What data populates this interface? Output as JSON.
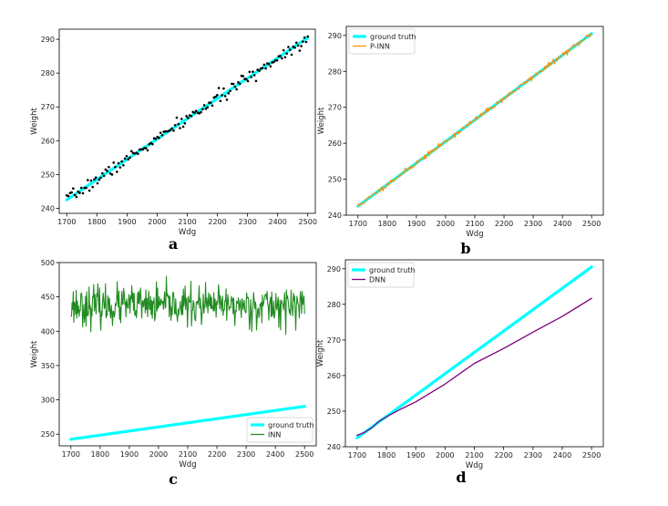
{
  "chart_data": [
    {
      "panel": "a",
      "type": "scatter",
      "xlabel": "Wdg",
      "ylabel": "Weight",
      "xlim": [
        1675,
        2525
      ],
      "ylim": [
        238.5,
        293
      ],
      "xticks": [
        1700,
        1800,
        1900,
        2000,
        2100,
        2200,
        2300,
        2400,
        2500
      ],
      "yticks": [
        240,
        250,
        260,
        270,
        280,
        290
      ],
      "grid": false,
      "legend": null,
      "series": [
        {
          "kind": "line",
          "color": "#00ffff",
          "x": [
            1700,
            2500
          ],
          "y": [
            242.5,
            290.5
          ]
        },
        {
          "kind": "scatter",
          "color": "#000000",
          "x_start": 1700,
          "x_end": 2500,
          "y_at": {
            "1700": 242.5,
            "2500": 290.5
          },
          "noise_sd": 0.9,
          "count": 150,
          "seed": 7
        }
      ]
    },
    {
      "panel": "b",
      "type": "line",
      "xlabel": "Wdg",
      "ylabel": "Weight",
      "xlim": [
        1660,
        2540
      ],
      "ylim": [
        240,
        292.5
      ],
      "xticks": [
        1700,
        1800,
        1900,
        2000,
        2100,
        2200,
        2300,
        2400,
        2500
      ],
      "yticks": [
        240,
        250,
        260,
        270,
        280,
        290
      ],
      "grid": false,
      "legend": "top-left",
      "series": [
        {
          "name": "ground truth",
          "kind": "line",
          "color": "#00ffff",
          "x": [
            1700,
            2500
          ],
          "y": [
            242.5,
            290.5
          ]
        },
        {
          "name": "P-INN",
          "kind": "noisy-line",
          "color": "#ff8c00",
          "x_start": 1700,
          "x_end": 2500,
          "y_at": {
            "1700": 242.5,
            "2500": 290.5
          },
          "noise_sd": 0.35,
          "count": 300,
          "seed": 11
        }
      ]
    },
    {
      "panel": "c",
      "type": "line",
      "xlabel": "Wdg",
      "ylabel": "Weight",
      "xlim": [
        1660,
        2540
      ],
      "ylim": [
        233,
        500
      ],
      "xticks": [
        1700,
        1800,
        1900,
        2000,
        2100,
        2200,
        2300,
        2400,
        2500
      ],
      "yticks": [
        250,
        300,
        350,
        400,
        450,
        500
      ],
      "grid": false,
      "legend": "bottom-right",
      "series": [
        {
          "name": "ground truth",
          "kind": "line",
          "color": "#00ffff",
          "x": [
            1700,
            2500
          ],
          "y": [
            242.5,
            290.5
          ]
        },
        {
          "name": "INN",
          "kind": "noisy-line",
          "color": "#228b22",
          "x_start": 1700,
          "x_end": 2500,
          "y_mean": 437,
          "noise_sd": 14,
          "min": 392,
          "max": 488,
          "count": 400,
          "seed": 23
        }
      ]
    },
    {
      "panel": "d",
      "type": "line",
      "xlabel": "Wdg",
      "ylabel": "Weight",
      "xlim": [
        1660,
        2540
      ],
      "ylim": [
        240,
        292.5
      ],
      "xticks": [
        1700,
        1800,
        1900,
        2000,
        2100,
        2200,
        2300,
        2400,
        2500
      ],
      "yticks": [
        240,
        250,
        260,
        270,
        280,
        290
      ],
      "grid": false,
      "legend": "top-left",
      "series": [
        {
          "name": "ground truth",
          "kind": "line",
          "color": "#00ffff",
          "x": [
            1700,
            2500
          ],
          "y": [
            242.5,
            290.5
          ]
        },
        {
          "name": "DNN",
          "kind": "line",
          "color": "#800080",
          "x": [
            1700,
            1725,
            1750,
            1775,
            1800,
            1850,
            1900,
            2000,
            2100,
            2200,
            2300,
            2400,
            2500
          ],
          "y": [
            243.2,
            244.0,
            245.3,
            247.2,
            248.4,
            250.6,
            252.6,
            257.6,
            263.4,
            267.6,
            272.2,
            276.6,
            281.7
          ]
        }
      ]
    }
  ],
  "panel_letters": [
    "a",
    "b",
    "c",
    "d"
  ]
}
